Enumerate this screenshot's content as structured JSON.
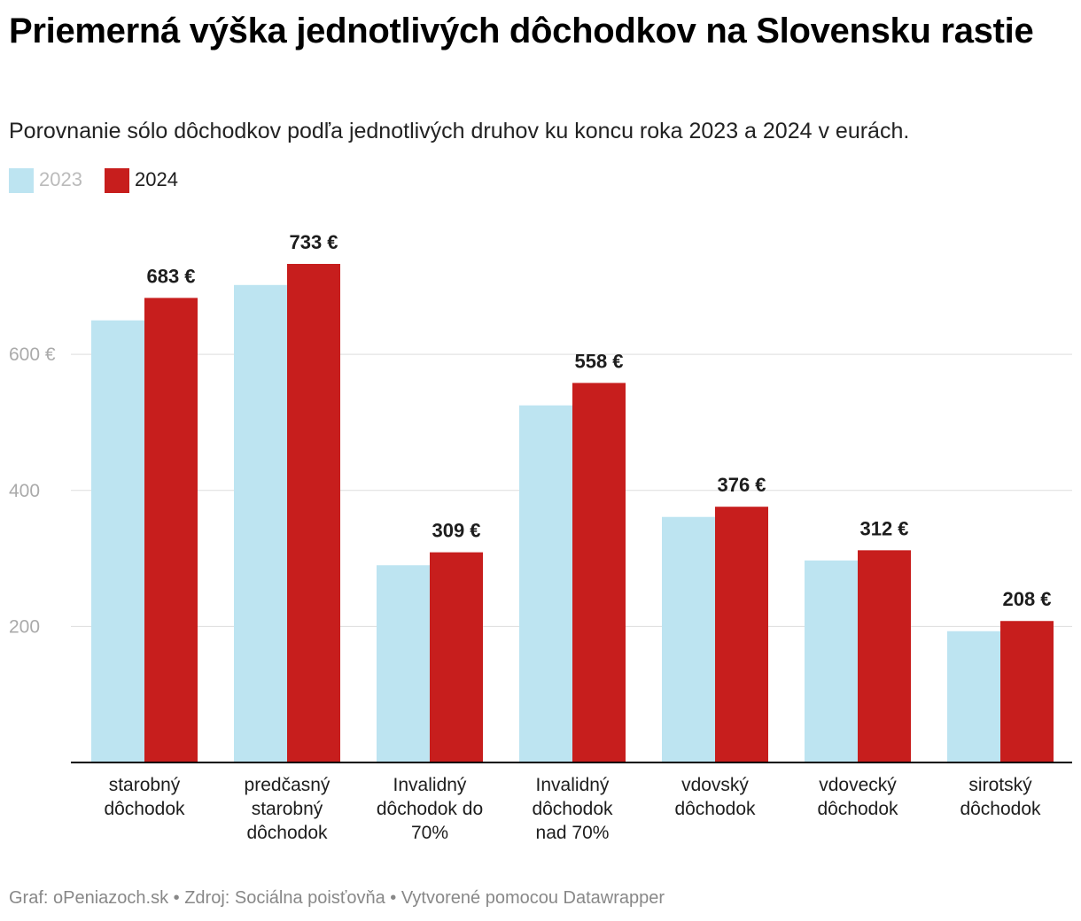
{
  "title": "Priemerná výška jednotlivých dôchodkov na Slovensku rastie",
  "subtitle": "Porovnanie sólo dôchodkov podľa jednotlivých druhov ku koncu roka 2023 a 2024 v eurách.",
  "footer": "Graf: oPeniazoch.sk • Zdroj: Sociálna poisťovňa • Vytvorené pomocou Datawrapper",
  "colors": {
    "series_2023": "#bde4f1",
    "series_2024": "#c71e1d",
    "legend_2023_text": "#bbbbbb",
    "legend_2024_text": "#1d1d1d",
    "grid": "#dddddd",
    "axis": "#000000"
  },
  "chart_data": {
    "type": "bar",
    "title": "Priemerná výška jednotlivých dôchodkov na Slovensku rastie",
    "xlabel": "",
    "ylabel": "",
    "ylim": [
      0,
      733
    ],
    "yticks": [
      {
        "value": 200,
        "label": "200"
      },
      {
        "value": 400,
        "label": "400"
      },
      {
        "value": 600,
        "label": "600 €"
      }
    ],
    "categories": [
      [
        "starobný",
        "dôchodok"
      ],
      [
        "predčasný",
        "starobný",
        "dôchodok"
      ],
      [
        "Invalidný",
        "dôchodok do",
        "70%"
      ],
      [
        "Invalidný",
        "dôchodok",
        "nad 70%"
      ],
      [
        "vdovský",
        "dôchodok"
      ],
      [
        "vdovecký",
        "dôchodok"
      ],
      [
        "sirotský",
        "dôchodok"
      ]
    ],
    "series": [
      {
        "name": "2023",
        "values": [
          650,
          702,
          290,
          525,
          361,
          297,
          193
        ]
      },
      {
        "name": "2024",
        "values": [
          683,
          733,
          309,
          558,
          376,
          312,
          208
        ]
      }
    ],
    "value_labels": [
      "683 €",
      "733 €",
      "309 €",
      "558 €",
      "376 €",
      "312 €",
      "208 €"
    ],
    "legend": {
      "position": "top-left",
      "labels": [
        "2023",
        "2024"
      ]
    },
    "grid": true
  }
}
